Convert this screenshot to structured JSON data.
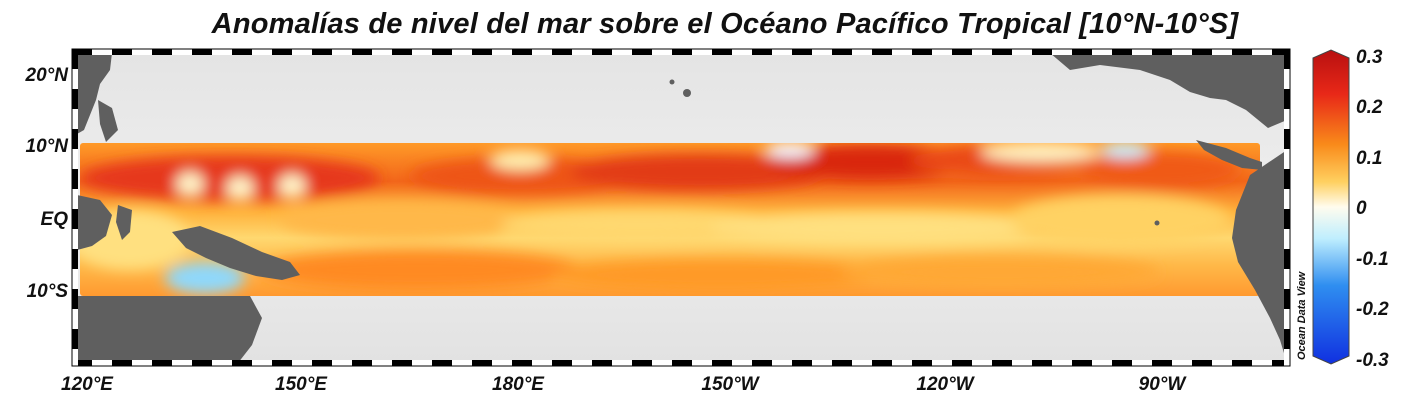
{
  "title": "Anomalías de nivel del mar sobre el Océano Pacífico Tropical [10°N-10°S]",
  "latitude_labels": [
    "20°N",
    "10°N",
    "EQ",
    "10°S"
  ],
  "longitude_labels": [
    "120°E",
    "150°E",
    "180°E",
    "150°W",
    "120°W",
    "90°W"
  ],
  "colorbar": {
    "ticks": [
      "0.3",
      "0.2",
      "0.1",
      "0",
      "-0.1",
      "-0.2",
      "-0.3"
    ],
    "colors": [
      "#1030e0",
      "#2f8ef0",
      "#bfeefe",
      "#fffcee",
      "#ffd060",
      "#f98a1a",
      "#e82818",
      "#b81010"
    ]
  },
  "watermark": "Ocean Data View",
  "colors": {
    "land": "#5f5f5f",
    "ocean": "#e9e9e9",
    "anomaly_high": "#e23a14",
    "anomaly_mid": "#ff9a1c",
    "anomaly_low": "#ffe27a",
    "anomaly_negative": "#8fd8fb"
  }
}
